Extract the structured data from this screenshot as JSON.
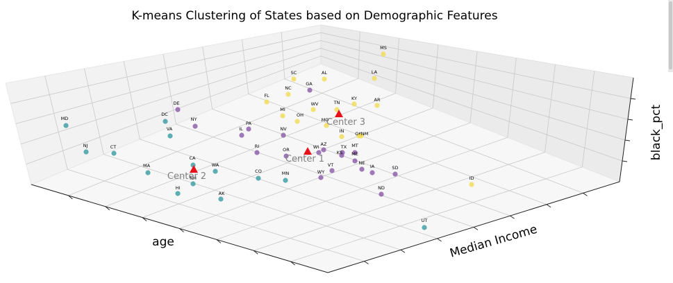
{
  "chart_data": {
    "type": "scatter",
    "title": "K-means Clustering of States based on Demographic Features",
    "xlabel": "age",
    "ylabel": "Median Income",
    "zlabel": "black_pct",
    "grid": true,
    "cluster_colors": [
      "#3b9ea3",
      "#8b5ca8",
      "#f2dc55"
    ],
    "center_color": "#e8111b",
    "centers": [
      {
        "label": "Center 1"
      },
      {
        "label": "Center 2"
      },
      {
        "label": "Center 3"
      }
    ],
    "states": [
      {
        "label": "MD",
        "cluster": 0
      },
      {
        "label": "NJ",
        "cluster": 0
      },
      {
        "label": "CT",
        "cluster": 0
      },
      {
        "label": "DC",
        "cluster": 0
      },
      {
        "label": "VA",
        "cluster": 0
      },
      {
        "label": "MA",
        "cluster": 0
      },
      {
        "label": "CA",
        "cluster": 0
      },
      {
        "label": "WA",
        "cluster": 0
      },
      {
        "label": "NH",
        "cluster": 0
      },
      {
        "label": "HI",
        "cluster": 0
      },
      {
        "label": "AK",
        "cluster": 0
      },
      {
        "label": "CO",
        "cluster": 0
      },
      {
        "label": "MN",
        "cluster": 0
      },
      {
        "label": "UT",
        "cluster": 0
      },
      {
        "label": "DE",
        "cluster": 1
      },
      {
        "label": "NY",
        "cluster": 1
      },
      {
        "label": "GA",
        "cluster": 1
      },
      {
        "label": "PA",
        "cluster": 1
      },
      {
        "label": "IL",
        "cluster": 1
      },
      {
        "label": "NV",
        "cluster": 1
      },
      {
        "label": "RI",
        "cluster": 1
      },
      {
        "label": "OR",
        "cluster": 1
      },
      {
        "label": "AZ",
        "cluster": 1
      },
      {
        "label": "WI",
        "cluster": 1
      },
      {
        "label": "TX",
        "cluster": 1
      },
      {
        "label": "KS",
        "cluster": 1
      },
      {
        "label": "MT",
        "cluster": 1
      },
      {
        "label": "ME",
        "cluster": 1
      },
      {
        "label": "VT",
        "cluster": 1
      },
      {
        "label": "NE",
        "cluster": 1
      },
      {
        "label": "IA",
        "cluster": 1
      },
      {
        "label": "WY",
        "cluster": 1
      },
      {
        "label": "SD",
        "cluster": 1
      },
      {
        "label": "ND",
        "cluster": 1
      },
      {
        "label": "MS",
        "cluster": 2
      },
      {
        "label": "LA",
        "cluster": 2
      },
      {
        "label": "AL",
        "cluster": 2
      },
      {
        "label": "SC",
        "cluster": 2
      },
      {
        "label": "NC",
        "cluster": 2
      },
      {
        "label": "AR",
        "cluster": 2
      },
      {
        "label": "FL",
        "cluster": 2
      },
      {
        "label": "TN",
        "cluster": 2
      },
      {
        "label": "WV",
        "cluster": 2
      },
      {
        "label": "MI",
        "cluster": 2
      },
      {
        "label": "OH",
        "cluster": 2
      },
      {
        "label": "KY",
        "cluster": 2
      },
      {
        "label": "MO",
        "cluster": 2
      },
      {
        "label": "IN",
        "cluster": 2
      },
      {
        "label": "OK",
        "cluster": 2
      },
      {
        "label": "NM",
        "cluster": 2
      },
      {
        "label": "ID",
        "cluster": 2
      }
    ]
  }
}
